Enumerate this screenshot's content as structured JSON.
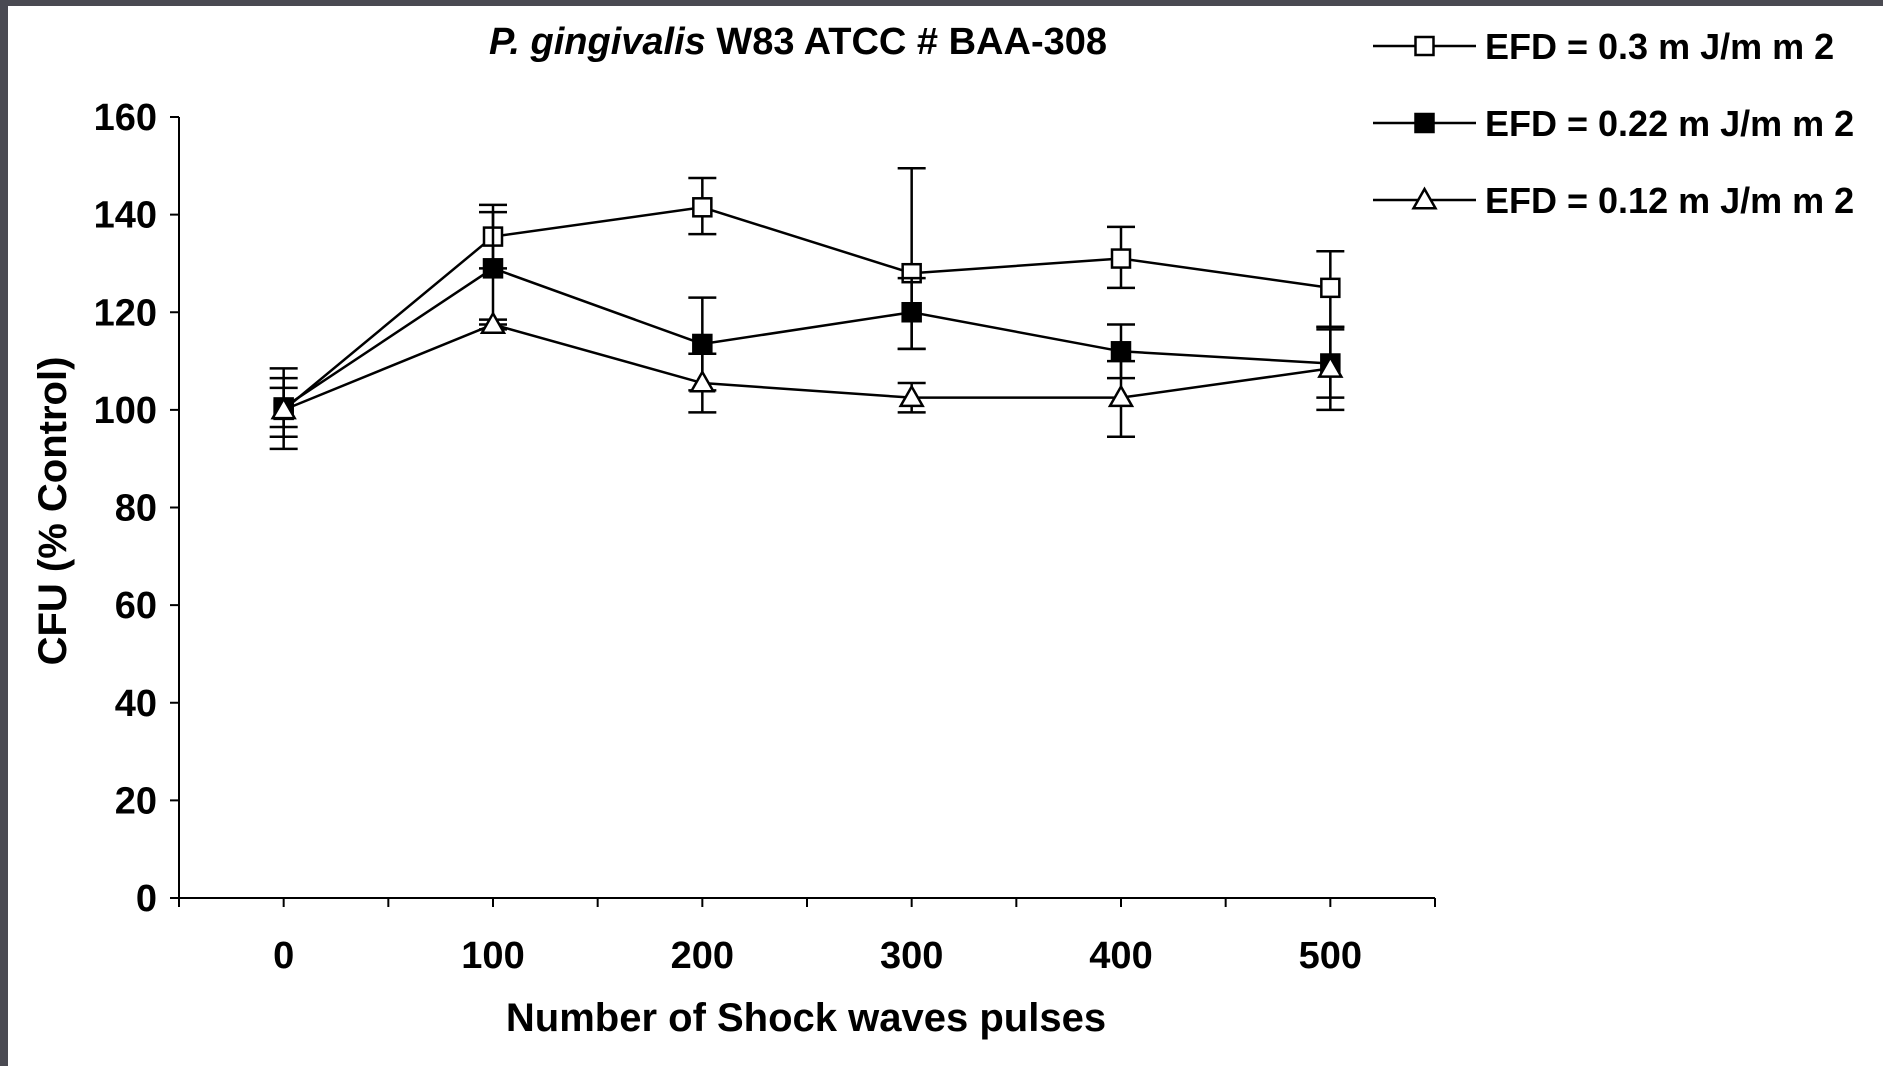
{
  "chart_data": {
    "type": "line",
    "title_italic": "P. gingivalis",
    "title_rest": " W83 ATCC # BAA-308",
    "xlabel": "Number of Shock waves pulses",
    "ylabel": "CFU (% Control)",
    "x": [
      0,
      100,
      200,
      300,
      400,
      500
    ],
    "x_ticks": [
      "0",
      "100",
      "200",
      "300",
      "400",
      "500"
    ],
    "y_ticks": [
      "0",
      "20",
      "40",
      "60",
      "80",
      "100",
      "120",
      "140",
      "160"
    ],
    "xlim": [
      -50,
      550
    ],
    "ylim": [
      0,
      160
    ],
    "grid": false,
    "legend_position": "top-right",
    "series": [
      {
        "name": "EFD = 0.3 m J/m m 2",
        "marker": "open-square",
        "values": [
          100,
          135.5,
          141.5,
          128,
          131,
          125
        ],
        "err_high": [
          108.5,
          142,
          147.5,
          149.5,
          137.5,
          132.5
        ],
        "err_low": [
          92,
          129,
          136,
          112.5,
          125,
          117
        ]
      },
      {
        "name": "EFD = 0.22 m J/m m 2",
        "marker": "filled-square",
        "values": [
          100.5,
          129,
          113.5,
          120,
          112,
          109.5
        ],
        "err_high": [
          106.5,
          140.5,
          123,
          127,
          117.5,
          116.5
        ],
        "err_low": [
          94.5,
          117.5,
          104,
          112.5,
          106.5,
          102.5
        ]
      },
      {
        "name": "EFD = 0.12 m J/m m 2",
        "marker": "open-triangle",
        "values": [
          100,
          117.5,
          105.5,
          102.5,
          102.5,
          108.5
        ],
        "err_high": [
          104.5,
          118.5,
          111.5,
          105.5,
          110,
          117
        ],
        "err_low": [
          96.5,
          116.5,
          99.5,
          99.5,
          94.5,
          100
        ]
      }
    ]
  }
}
